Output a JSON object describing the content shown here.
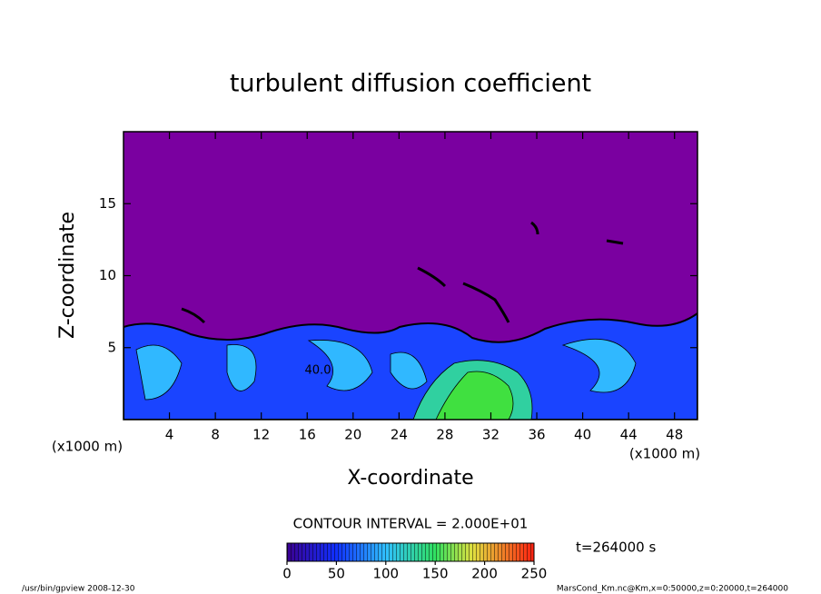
{
  "chart_data": {
    "type": "contour",
    "title": "turbulent diffusion coefficient",
    "xlabel": "X-coordinate",
    "ylabel": "Z-coordinate",
    "unit_label": "(x1000 m)",
    "xlim": [
      0,
      50
    ],
    "xticks": [
      4,
      8,
      12,
      16,
      20,
      24,
      28,
      32,
      36,
      40,
      44,
      48
    ],
    "ylim": [
      0,
      20
    ],
    "yticks": [
      5,
      10,
      15
    ],
    "annotation": "40.0",
    "contour_interval": "CONTOUR INTERVAL = 2.000E+01",
    "time_label": "t=264000 s",
    "colorbar_lim": [
      0,
      250
    ],
    "colorbar_ticks": [
      0,
      50,
      100,
      150,
      200,
      250
    ],
    "footer_left": "/usr/bin/gpview   2008-12-30",
    "footer_right": "MarsCond_Km.nc@Km,x=0:50000,z=0:20000,t=264000"
  }
}
